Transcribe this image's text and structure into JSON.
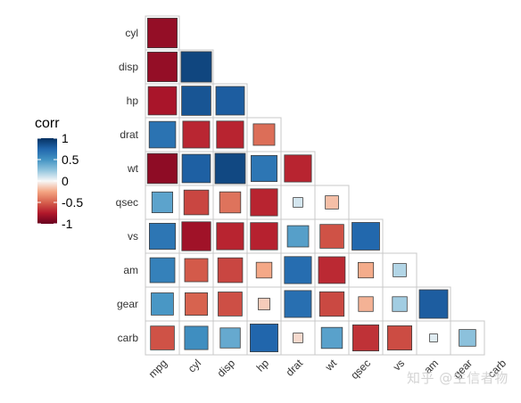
{
  "chart_data": {
    "type": "heatmap",
    "title": "",
    "xlabel": "",
    "ylabel": "",
    "variables": [
      "mpg",
      "cyl",
      "disp",
      "hp",
      "drat",
      "wt",
      "qsec",
      "vs",
      "am",
      "gear",
      "carb"
    ],
    "x_labels": [
      "mpg",
      "cyl",
      "disp",
      "hp",
      "drat",
      "wt",
      "qsec",
      "vs",
      "am",
      "gear",
      "carb"
    ],
    "y_labels": [
      "cyl",
      "disp",
      "hp",
      "drat",
      "wt",
      "qsec",
      "vs",
      "am",
      "gear",
      "carb"
    ],
    "triangle": "lower",
    "encoding": "square size and fill color proportional to correlation",
    "matrix": [
      [
        -0.85
      ],
      [
        -0.85,
        0.9
      ],
      [
        -0.78,
        0.83,
        0.79
      ],
      [
        0.68,
        -0.7,
        -0.71,
        -0.45
      ],
      [
        -0.87,
        0.78,
        0.89,
        0.66,
        -0.71
      ],
      [
        0.42,
        -0.59,
        -0.43,
        -0.71,
        0.09,
        -0.17
      ],
      [
        0.66,
        -0.81,
        -0.71,
        -0.72,
        0.44,
        -0.55,
        0.74
      ],
      [
        0.6,
        -0.52,
        -0.59,
        -0.24,
        0.71,
        -0.69,
        -0.23,
        0.17
      ],
      [
        0.48,
        -0.49,
        -0.56,
        -0.13,
        0.7,
        -0.58,
        -0.21,
        0.21,
        0.79
      ],
      [
        -0.55,
        0.53,
        0.39,
        0.75,
        -0.09,
        0.43,
        -0.66,
        -0.57,
        0.06,
        0.27
      ]
    ],
    "legend": {
      "title": "corr",
      "ticks": [
        1,
        0.5,
        0,
        -0.5,
        -1
      ],
      "tick_labels": [
        "1",
        "0.5",
        "0",
        "-0.5",
        "-1"
      ],
      "range": [
        -1,
        1
      ],
      "placement": "left"
    },
    "colors": {
      "low": "#67001f",
      "mid": "#f7f7f7",
      "high": "#053061",
      "grid": "#c8c8c8",
      "box_border": "#404040"
    }
  },
  "watermark": "知乎 @生信者物"
}
